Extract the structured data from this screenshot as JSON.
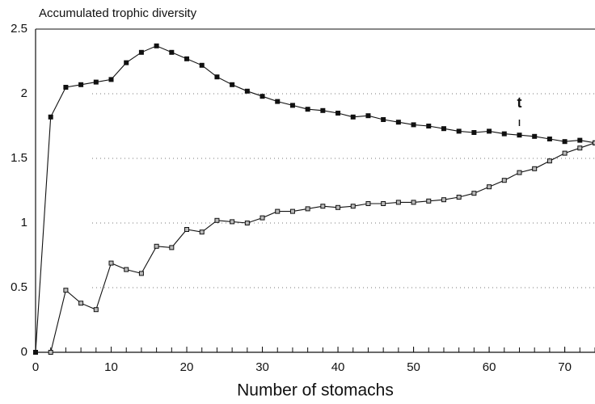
{
  "chart_data": {
    "type": "line",
    "title": "Accumulated trophic diversity",
    "xlabel": "Number of stomachs",
    "annotation": "t",
    "annotation_x": 64,
    "x": [
      0,
      2,
      4,
      6,
      8,
      10,
      12,
      14,
      16,
      18,
      20,
      22,
      24,
      26,
      28,
      30,
      32,
      34,
      36,
      38,
      40,
      42,
      44,
      46,
      48,
      50,
      52,
      54,
      56,
      58,
      60,
      62,
      64,
      66,
      68,
      70,
      72,
      74
    ],
    "series": [
      {
        "color": "#111111",
        "values": [
          0,
          1.82,
          2.05,
          2.07,
          2.09,
          2.11,
          2.24,
          2.32,
          2.37,
          2.32,
          2.27,
          2.22,
          2.13,
          2.07,
          2.02,
          1.98,
          1.94,
          1.91,
          1.88,
          1.87,
          1.85,
          1.82,
          1.83,
          1.8,
          1.78,
          1.76,
          1.75,
          1.73,
          1.71,
          1.7,
          1.71,
          1.69,
          1.68,
          1.67,
          1.65,
          1.63,
          1.64,
          1.62
        ]
      },
      {
        "color": "#111111",
        "values": [
          null,
          0,
          0.48,
          0.38,
          0.33,
          0.69,
          0.64,
          0.61,
          0.82,
          0.81,
          0.95,
          0.93,
          1.02,
          1.01,
          1.0,
          1.04,
          1.09,
          1.09,
          1.11,
          1.13,
          1.12,
          1.13,
          1.15,
          1.15,
          1.16,
          1.16,
          1.17,
          1.18,
          1.2,
          1.23,
          1.28,
          1.33,
          1.39,
          1.42,
          1.48,
          1.54,
          1.58,
          1.62
        ]
      }
    ],
    "xlim": [
      0,
      74
    ],
    "xticks": [
      0,
      10,
      20,
      30,
      40,
      50,
      60,
      70
    ],
    "ylim": [
      0,
      2.5
    ],
    "yticks": [
      0,
      0.5,
      1,
      1.5,
      2,
      2.5
    ],
    "grid": true
  }
}
